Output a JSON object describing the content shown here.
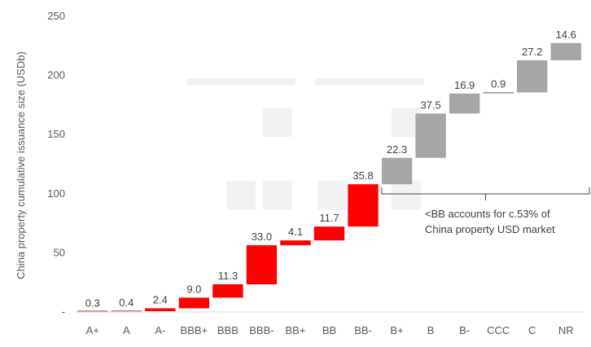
{
  "chart_data": {
    "type": "bar",
    "subtype": "waterfall",
    "ylabel": "China property cumulative issuance size (USDb)",
    "ylim": [
      0,
      250
    ],
    "yticks": [
      "250",
      "200",
      "150",
      "100",
      "50",
      "-"
    ],
    "ytick_values": [
      250,
      200,
      150,
      100,
      50,
      0
    ],
    "categories": [
      "A+",
      "A",
      "A-",
      "BBB+",
      "BBB",
      "BBB-",
      "BB+",
      "BB",
      "BB-",
      "B+",
      "B",
      "B-",
      "CCC",
      "C",
      "NR"
    ],
    "values": [
      0.3,
      0.4,
      2.4,
      9.0,
      11.3,
      33.0,
      4.1,
      11.7,
      35.8,
      22.3,
      37.5,
      16.9,
      0.9,
      27.2,
      14.6
    ],
    "value_labels": [
      "0.3",
      "0.4",
      "2.4",
      "9.0",
      "11.3",
      "33.0",
      "4.1",
      "11.7",
      "35.8",
      "22.3",
      "37.5",
      "16.9",
      "0.9",
      "27.2",
      "14.6"
    ],
    "highlight_count": 9,
    "colors": {
      "highlight": "#ff0000",
      "rest": "#a6a6a6",
      "axis": "#d9d9d9",
      "text": "#595959"
    },
    "annotation": {
      "lines": [
        "<BB accounts for c.53% of",
        "China property USD market"
      ]
    },
    "grid": false,
    "legend": "none"
  }
}
